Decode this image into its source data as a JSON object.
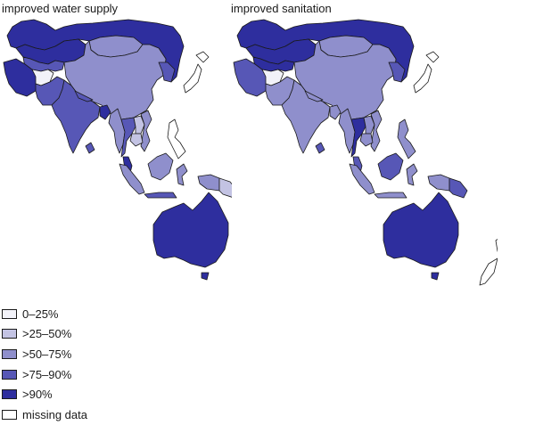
{
  "panels": [
    {
      "title": "improved water supply"
    },
    {
      "title": "improved sanitation"
    }
  ],
  "legend": [
    {
      "label": "0–25%",
      "color": "#f2f2f9"
    },
    {
      "label": ">25–50%",
      "color": "#c3c3e3"
    },
    {
      "label": ">50–75%",
      "color": "#8f8fcc"
    },
    {
      "label": ">75–90%",
      "color": "#5757b6"
    },
    {
      "label": ">90%",
      "color": "#2e2e9e"
    },
    {
      "label": "missing data",
      "color": "#ffffff"
    }
  ],
  "countries": {
    "water": {
      "russia": ">90%",
      "china": ">50–75%",
      "mongolia": ">50–75%",
      "kazakhstan": ">90%",
      "central_asia": ">75–90%",
      "iran": ">90%",
      "afghanistan": "0–25%",
      "pakistan": ">75–90%",
      "india": ">75–90%",
      "nepal": ">75–90%",
      "bangladesh": ">90%",
      "myanmar": ">50–75%",
      "thailand": ">75–90%",
      "laos": ">25–50%",
      "vietnam": ">50–75%",
      "cambodia": ">25–50%",
      "korea": ">75–90%",
      "japan": "missing data",
      "philippines": "missing data",
      "malaysia": ">90%",
      "sumatra": ">50–75%",
      "borneo": ">50–75%",
      "java": ">75–90%",
      "sulawesi": ">50–75%",
      "new_guinea_west": ">50–75%",
      "png": ">25–50%",
      "australia": ">90%",
      "tasmania": ">90%",
      "new_zealand": "missing data",
      "sri_lanka": ">75–90%"
    },
    "sanitation": {
      "russia": ">90%",
      "china": ">50–75%",
      "mongolia": ">50–75%",
      "kazakhstan": ">90%",
      "central_asia": ">90%",
      "iran": ">75–90%",
      "afghanistan": "0–25%",
      "pakistan": ">50–75%",
      "india": ">50–75%",
      "nepal": ">50–75%",
      "bangladesh": ">50–75%",
      "myanmar": ">50–75%",
      "thailand": ">90%",
      "laos": ">50–75%",
      "vietnam": ">50–75%",
      "cambodia": ">50–75%",
      "korea": ">75–90%",
      "japan": "missing data",
      "philippines": ">50–75%",
      "malaysia": ">75–90%",
      "sumatra": ">50–75%",
      "borneo": ">75–90%",
      "java": ">50–75%",
      "sulawesi": ">50–75%",
      "new_guinea_west": ">50–75%",
      "png": ">75–90%",
      "australia": ">90%",
      "tasmania": ">90%",
      "new_zealand": "missing data",
      "sri_lanka": ">75–90%"
    }
  }
}
